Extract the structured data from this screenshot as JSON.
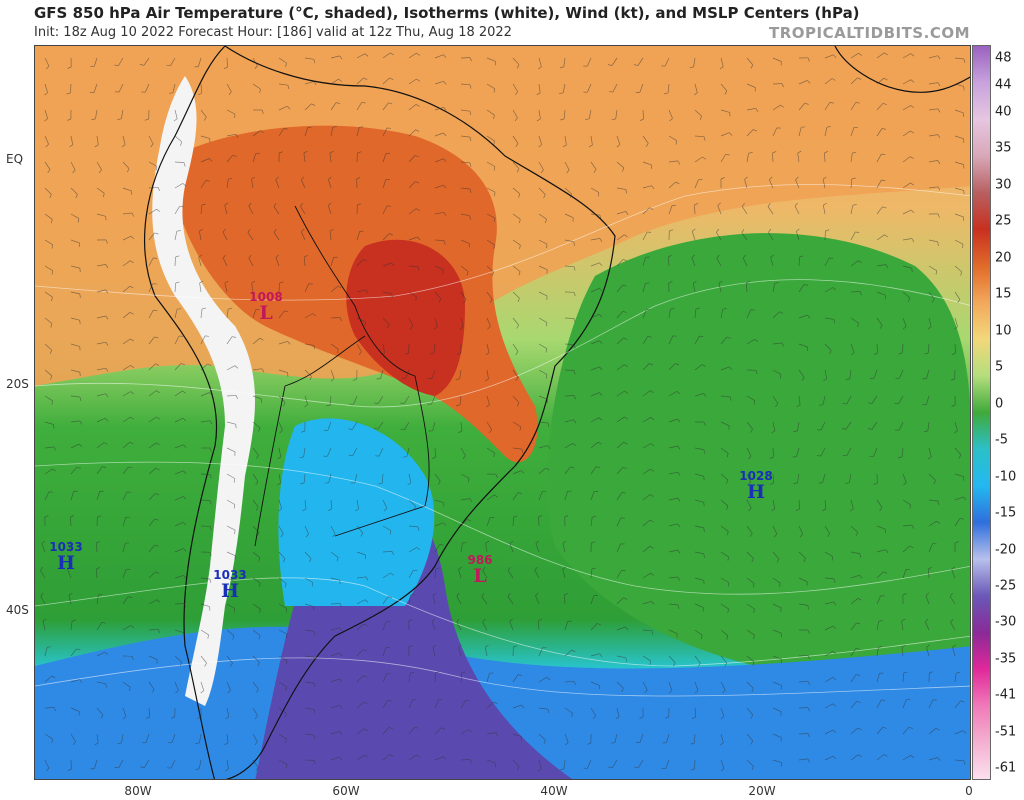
{
  "header": {
    "title": "GFS 850 hPa Air Temperature (°C, shaded), Isotherms (white), Wind (kt), and MSLP Centers (hPa)",
    "subtitle": "Init: 18z Aug 10 2022   Forecast Hour: [186]   valid at 12z Thu, Aug 18 2022",
    "brand": "TROPICALTIDBITS.COM"
  },
  "axes": {
    "lat_labels": [
      "EQ",
      "20S",
      "40S"
    ],
    "lon_labels": [
      "80W",
      "60W",
      "40W",
      "20W",
      "0"
    ]
  },
  "colorbar": {
    "ticks": [
      "48",
      "44",
      "40",
      "35",
      "30",
      "25",
      "20",
      "15",
      "10",
      "5",
      "0",
      "-5",
      "-10",
      "-15",
      "-20",
      "-25",
      "-30",
      "-35",
      "-41",
      "-51",
      "-61"
    ],
    "colors": [
      "#9a62c0",
      "#c8a2dc",
      "#e6c6e0",
      "#d8a8b8",
      "#b86060",
      "#c83020",
      "#e06a2a",
      "#f2a85a",
      "#f2d87a",
      "#b4de7c",
      "#3faa3a",
      "#2cc0c8",
      "#23b8f0",
      "#2f6fdc",
      "#b8c0ec",
      "#6a58b8",
      "#8a2a98",
      "#e0289a",
      "#f07ab8",
      "#f4b0d0",
      "#fbe0ee"
    ]
  },
  "mslp_centers": [
    {
      "type": "low",
      "letter": "L",
      "value": "1008"
    },
    {
      "type": "high",
      "letter": "H",
      "value": "1028"
    },
    {
      "type": "high",
      "letter": "H",
      "value": "1033"
    },
    {
      "type": "high",
      "letter": "H",
      "value": "1033"
    },
    {
      "type": "low",
      "letter": "L",
      "value": "986"
    }
  ]
}
